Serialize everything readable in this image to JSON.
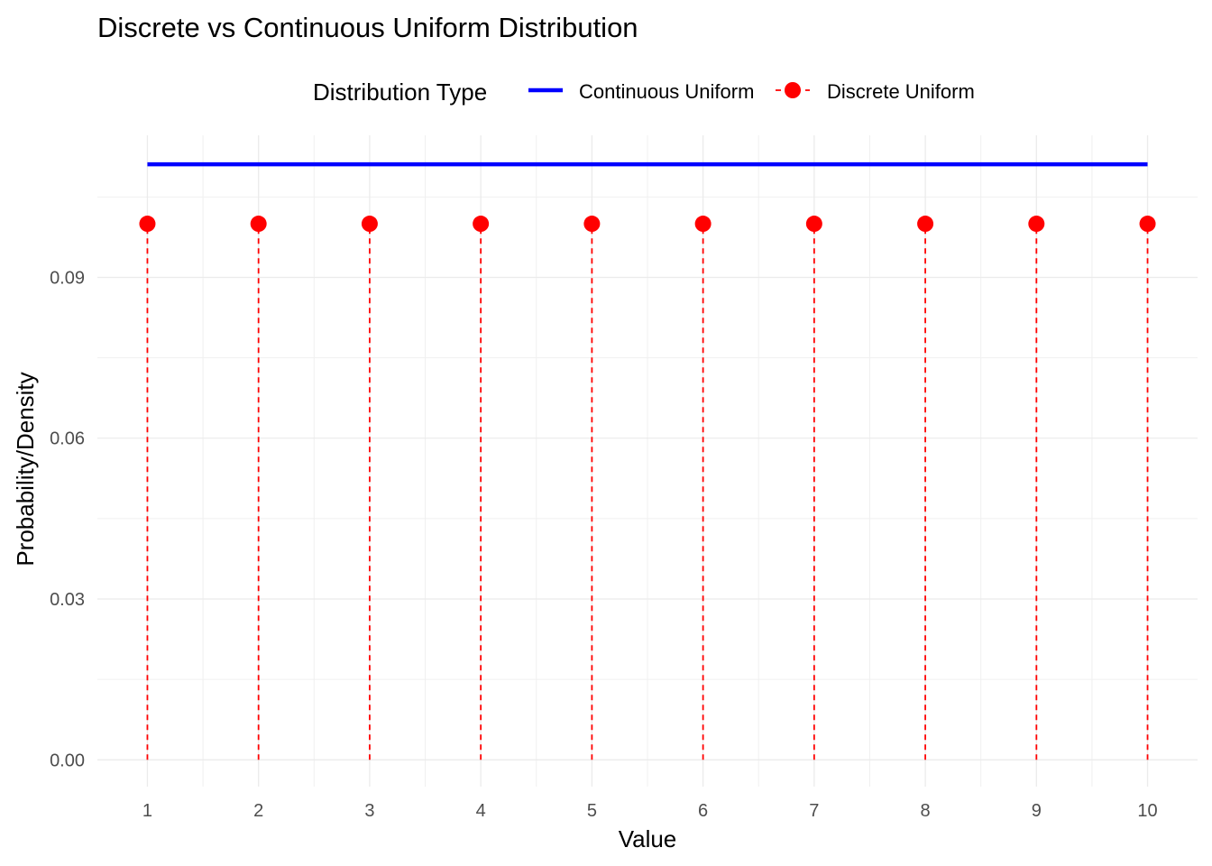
{
  "chart_data": {
    "type": "line",
    "title": "Discrete vs Continuous Uniform Distribution",
    "xlabel": "Value",
    "ylabel": "Probability/Density",
    "xlim": [
      0.55,
      10.45
    ],
    "ylim": [
      -0.005,
      0.1165
    ],
    "x_ticks": [
      1,
      2,
      3,
      4,
      5,
      6,
      7,
      8,
      9,
      10
    ],
    "x_tick_labels": [
      "1",
      "2",
      "3",
      "4",
      "5",
      "6",
      "7",
      "8",
      "9",
      "10"
    ],
    "y_ticks": [
      0.0,
      0.03,
      0.06,
      0.09
    ],
    "y_tick_labels": [
      "0.00",
      "0.03",
      "0.06",
      "0.09"
    ],
    "grid": true,
    "legend": {
      "title": "Distribution Type",
      "position": "top",
      "entries": [
        "Continuous Uniform",
        "Discrete Uniform"
      ]
    },
    "series": [
      {
        "name": "Continuous Uniform",
        "style": "line",
        "color": "#0000FF",
        "x": [
          1,
          10
        ],
        "y": [
          0.1111,
          0.1111
        ]
      },
      {
        "name": "Discrete Uniform",
        "style": "points-with-dashed-stems",
        "color": "#FF0000",
        "x": [
          1,
          2,
          3,
          4,
          5,
          6,
          7,
          8,
          9,
          10
        ],
        "y": [
          0.1,
          0.1,
          0.1,
          0.1,
          0.1,
          0.1,
          0.1,
          0.1,
          0.1,
          0.1
        ]
      }
    ]
  }
}
